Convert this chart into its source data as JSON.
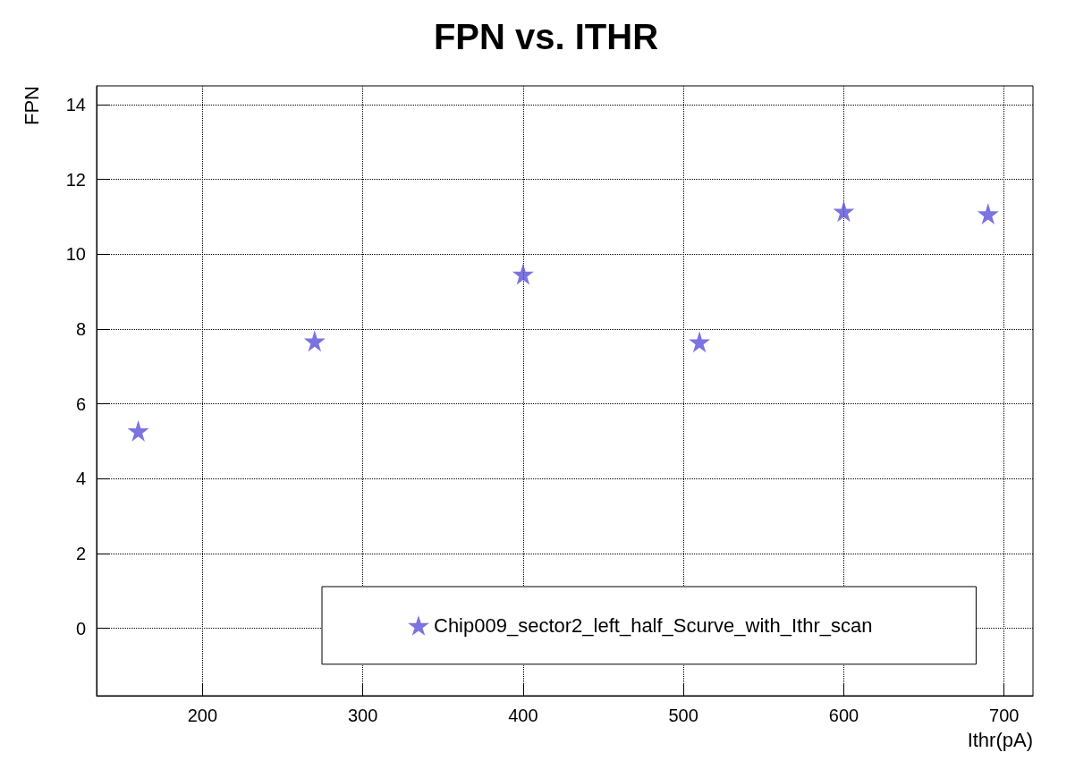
{
  "chart_data": {
    "type": "scatter",
    "title": "FPN vs. ITHR",
    "xlabel": "Ithr(pA)",
    "ylabel": "FPN",
    "x": [
      160,
      270,
      400,
      510,
      600,
      690
    ],
    "series": [
      {
        "name": "Chip009_sector2_left_half_Scurve_with_Ithr_scan",
        "color": "#5a50d8",
        "values": [
          5.28,
          7.68,
          9.47,
          7.66,
          11.15,
          11.08
        ]
      }
    ],
    "xlim": [
      134,
      718
    ],
    "xticks": [
      200,
      300,
      400,
      500,
      600,
      700
    ],
    "ylim": [
      -1.8,
      14.5
    ],
    "yticks": [
      0,
      2,
      4,
      6,
      8,
      10,
      12,
      14
    ],
    "grid": true,
    "legend": "bottom right",
    "marker": "star"
  }
}
